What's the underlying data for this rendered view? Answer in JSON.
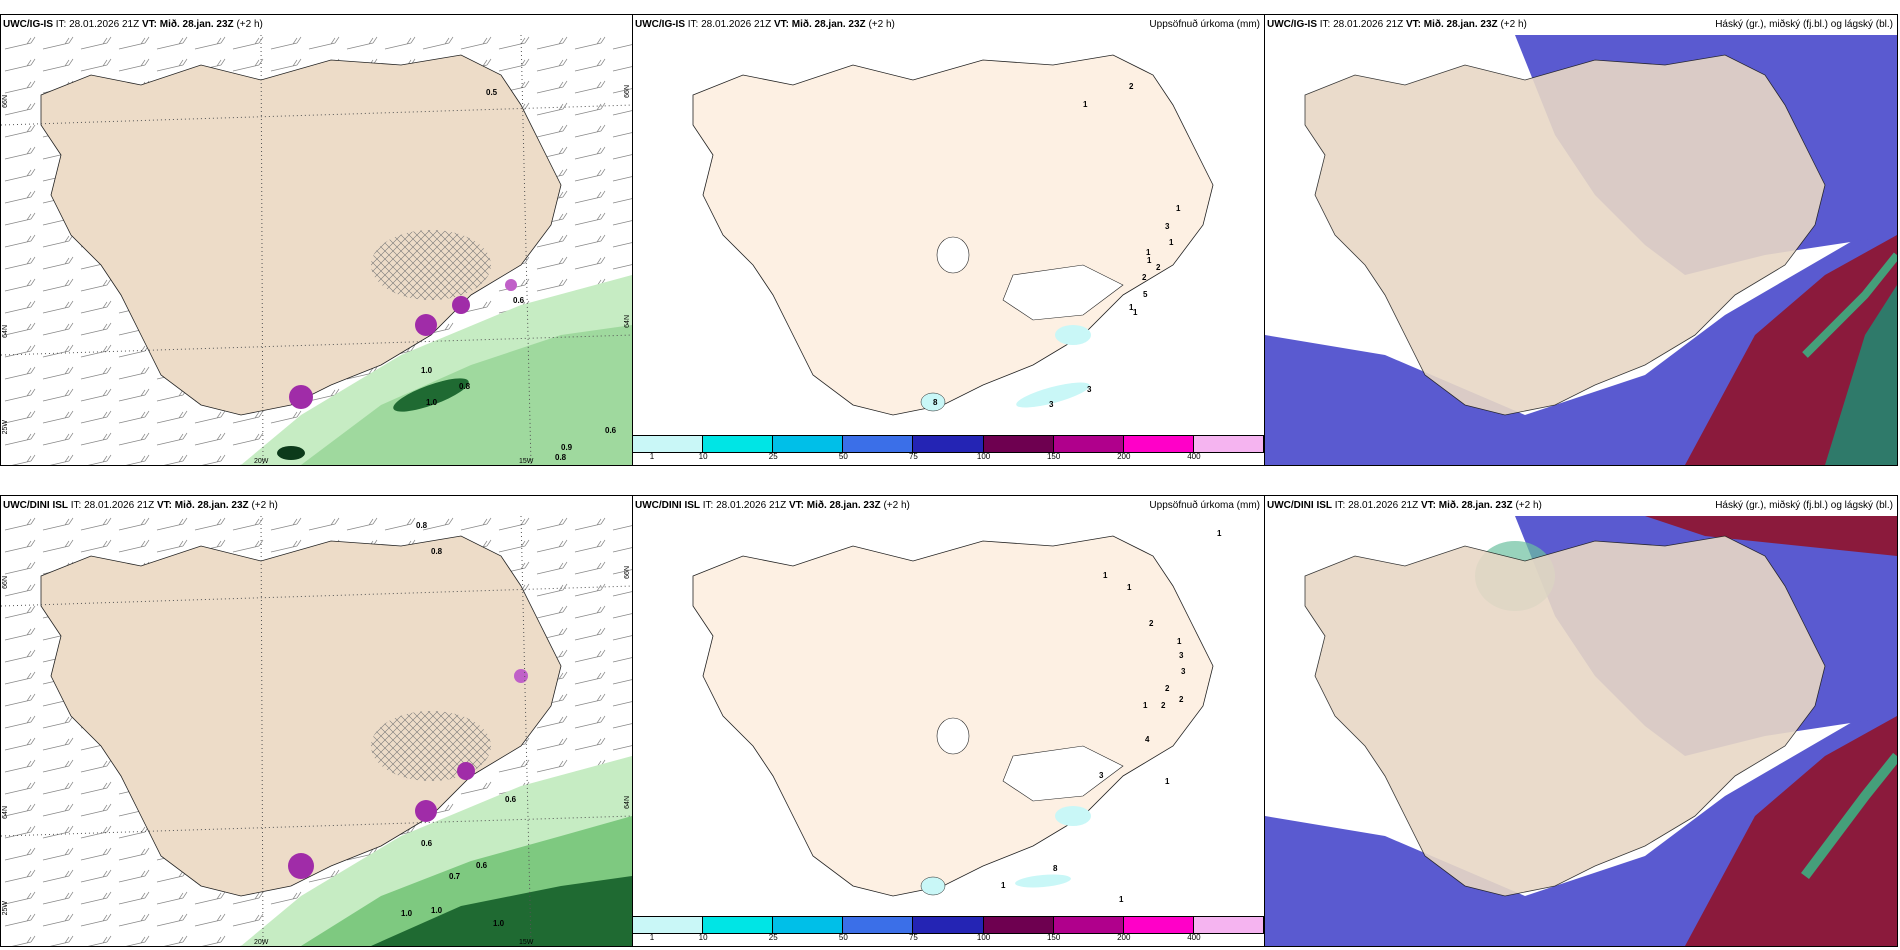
{
  "rows": [
    {
      "model": "UWC/IG-IS",
      "it_label": "IT: 28.01.2026 21Z",
      "vt_label": "VT: Mið. 28.jan. 23Z",
      "lead": "(+2 h)",
      "contour_labels": [
        "0.5",
        "0.6",
        "1.0",
        "0.8",
        "1.0",
        "0.6",
        "0.9",
        "0.8"
      ],
      "precip_labels": [
        "1",
        "2",
        "3",
        "1",
        "1",
        "1",
        "2",
        "1",
        "2",
        "5",
        "1",
        "1",
        "3",
        "3",
        "8"
      ],
      "lon_labels": [
        "20W",
        "15W"
      ],
      "lat_labels": [
        "66N",
        "64N",
        "25W"
      ],
      "lat_labels_right": [
        "66N",
        "64N"
      ]
    },
    {
      "model": "UWC/DINI ISL",
      "it_label": "IT: 28.01.2026 21Z",
      "vt_label": "VT: Mið. 28.jan. 23Z",
      "lead": "(+2 h)",
      "contour_labels": [
        "0.8",
        "0.8",
        "0.6",
        "0.6",
        "0.7",
        "0.6",
        "1.0",
        "1.0",
        "1.0"
      ],
      "precip_labels": [
        "1",
        "1",
        "1",
        "2",
        "1",
        "3",
        "3",
        "2",
        "1",
        "2",
        "2",
        "4",
        "3",
        "1",
        "8",
        "1",
        "1"
      ],
      "lon_labels": [
        "20W",
        "15W"
      ],
      "lat_labels": [
        "66N",
        "64N",
        "25W"
      ],
      "lat_labels_right": [
        "66N",
        "64N"
      ]
    }
  ],
  "precip_title": "Uppsöfnuð úrkoma (mm)",
  "cloud_title": "Háský (gr.), miðský (fj.bl.) og lágský (bl.)",
  "colorbar": {
    "colors": [
      "#c9f7f7",
      "#00e5e5",
      "#00bfe8",
      "#3b6fe8",
      "#2424b4",
      "#6e0050",
      "#b0008c",
      "#ff00c8",
      "#f5b4f0"
    ],
    "ticks": [
      "1",
      "10",
      "25",
      "50",
      "75",
      "100",
      "150",
      "200",
      "400"
    ]
  },
  "colors": {
    "land": "#eddcc8",
    "land_precip": "#fdf0e3",
    "green_light": "#c6ecc3",
    "green_mid": "#6cc16f",
    "green_dark": "#1f6a32",
    "magenta": "#a02ca8",
    "cloud_high": "#8b1a3c",
    "cloud_mid": "#5a5ad0",
    "cloud_low": "#2f7a6a"
  }
}
